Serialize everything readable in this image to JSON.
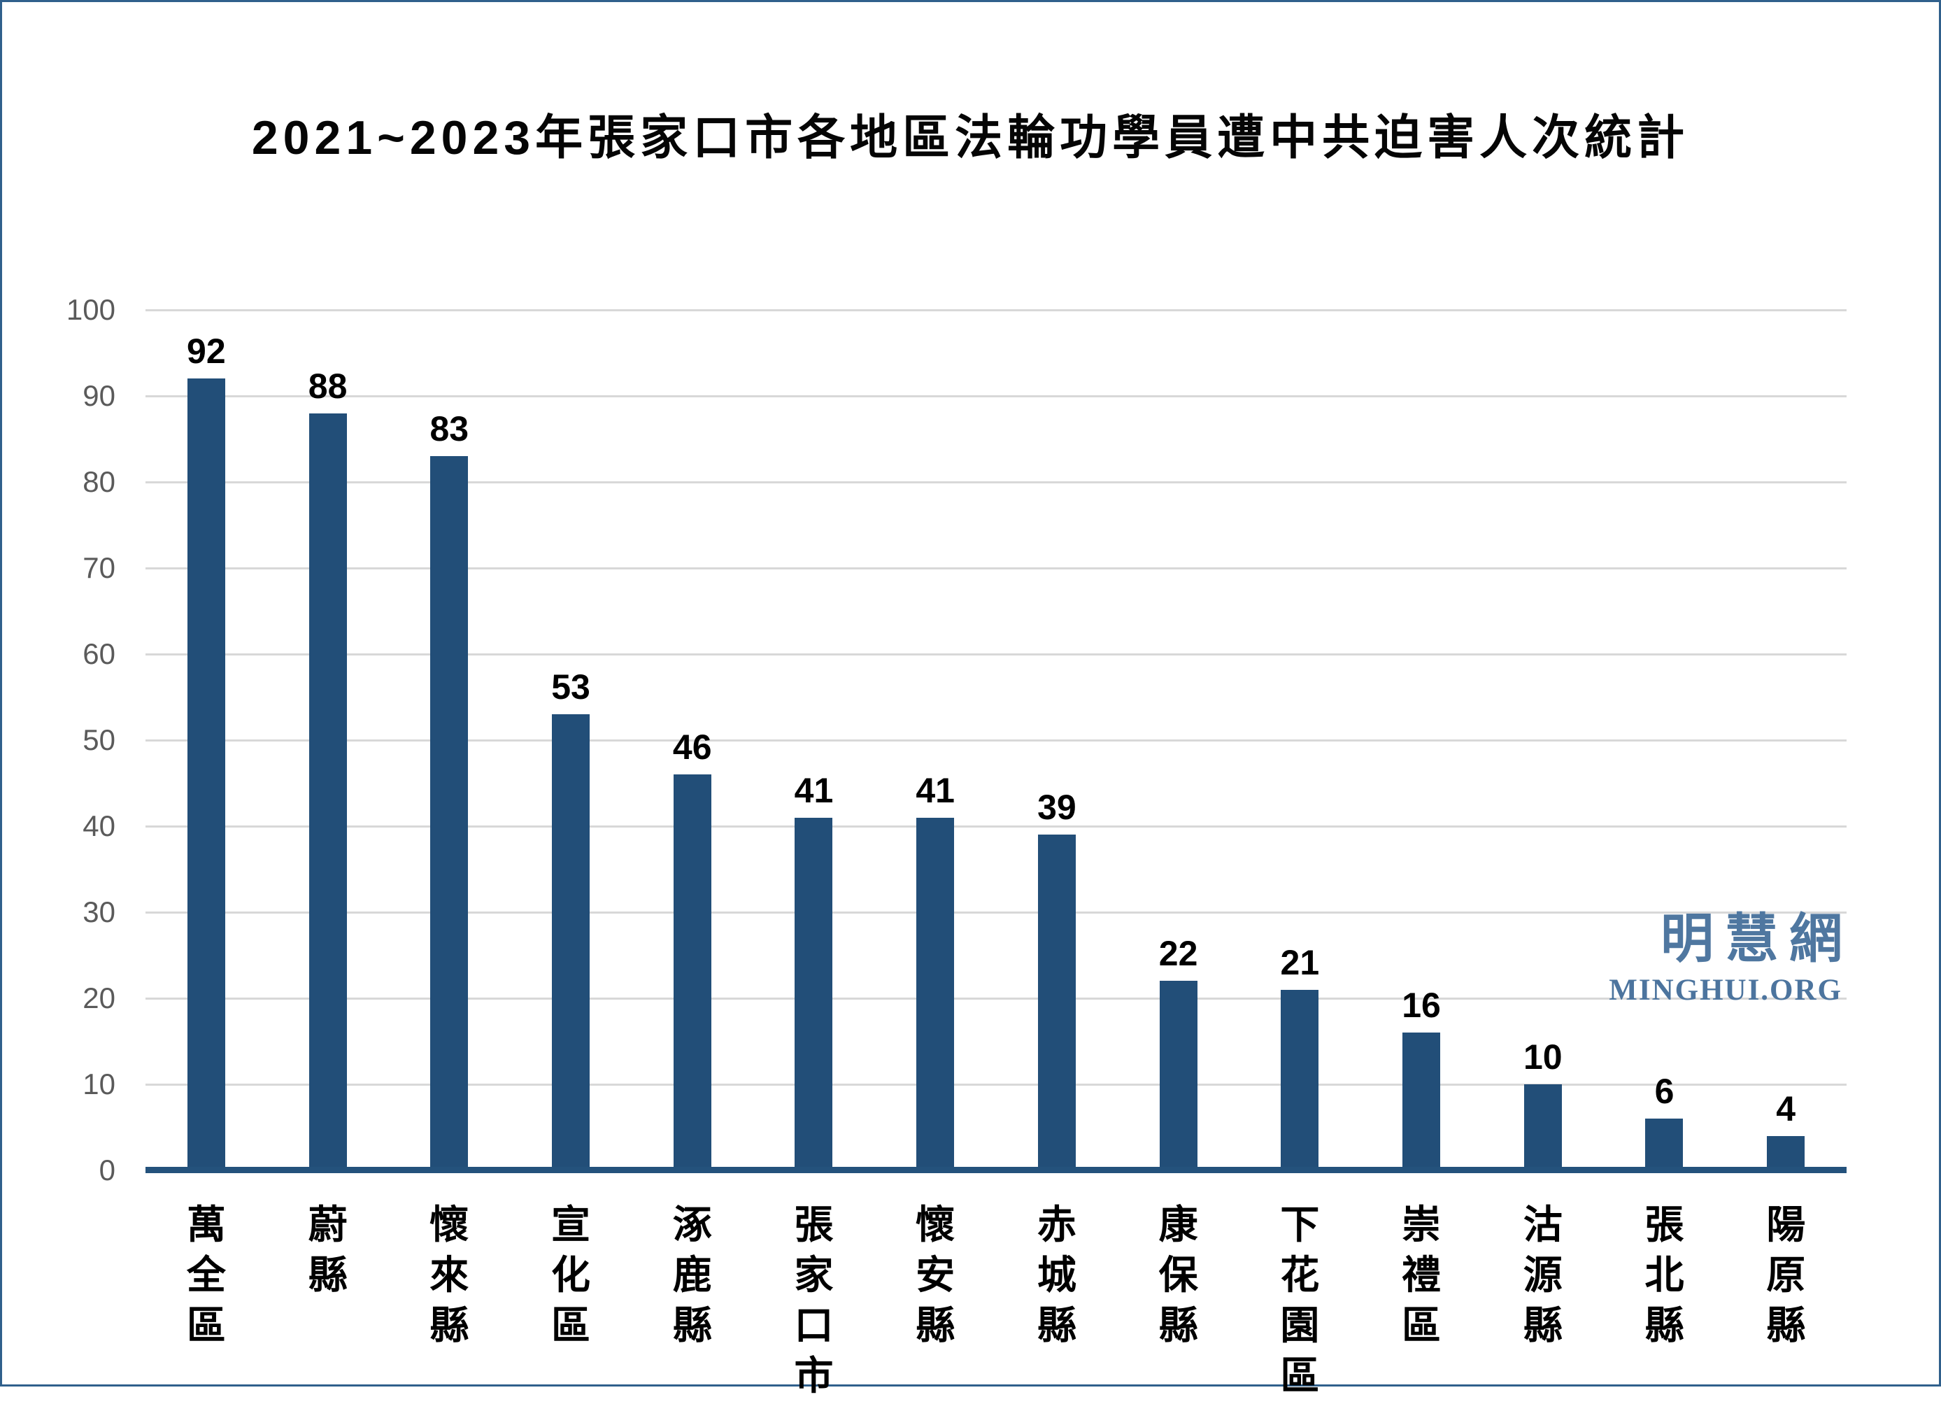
{
  "page": {
    "background": "#ffffff",
    "border_color": "#30608c"
  },
  "watermark": {
    "cn": "明慧網",
    "en": "MINGHUI.ORG",
    "color_cn": "#4f77a0",
    "color_en": "#4c749e"
  },
  "chart_data": {
    "type": "bar",
    "title": "2021~2023年張家口市各地區法輪功學員遭中共迫害人次統計",
    "categories": [
      "萬全區",
      "蔚縣",
      "懷來縣",
      "宣化區",
      "涿鹿縣",
      "張家口市",
      "懷安縣",
      "赤城縣",
      "康保縣",
      "下花園區",
      "崇禮區",
      "沽源縣",
      "張北縣",
      "陽原縣"
    ],
    "values": [
      92,
      88,
      83,
      53,
      46,
      41,
      41,
      39,
      22,
      21,
      16,
      10,
      6,
      4
    ],
    "xlabel": "",
    "ylabel": "",
    "ylim": [
      0,
      100
    ],
    "yticks": [
      0,
      10,
      20,
      30,
      40,
      50,
      60,
      70,
      80,
      90,
      100
    ],
    "grid": true,
    "legend": "none",
    "bar_color": "#224e78",
    "axis_line_color": "#24527c",
    "gridline_color": "#d8d8d8",
    "tick_label_color": "#5a5a5a",
    "value_label_color": "#000000",
    "value_labels_shown": true,
    "x_label_orientation": "vertical"
  }
}
